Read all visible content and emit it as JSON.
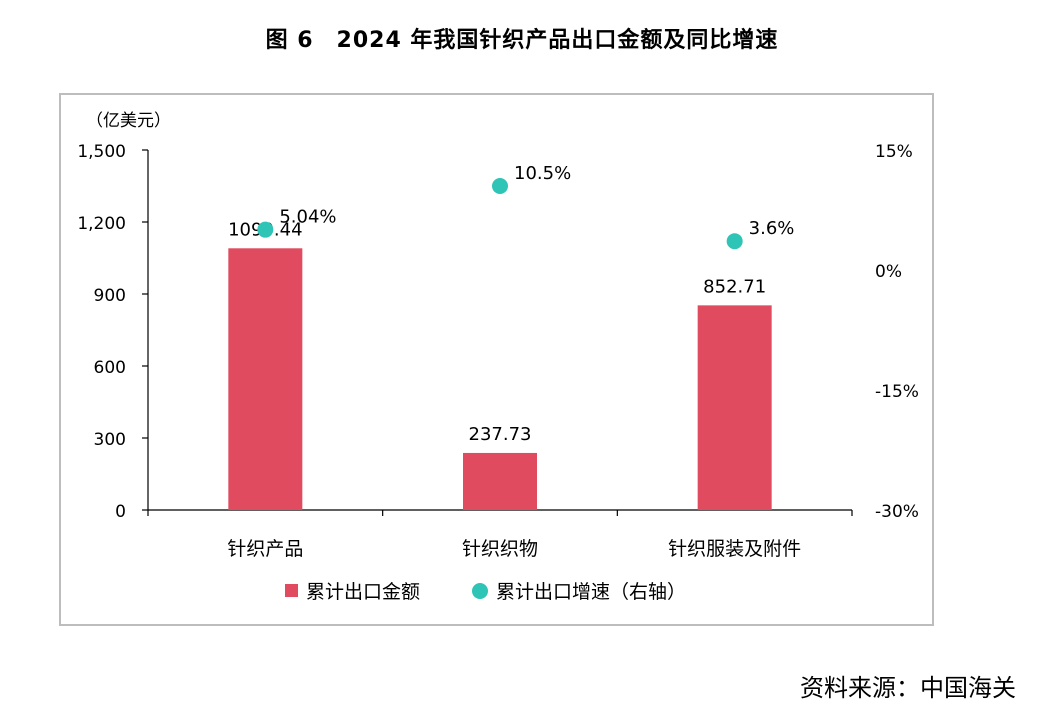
{
  "title": "图 6　2024 年我国针织产品出口金额及同比增速",
  "source": "资料来源：中国海关",
  "colors": {
    "bar": "#e04b5f",
    "dot": "#2ec4b6",
    "axis": "#000000",
    "frame": "#bdbdbd"
  },
  "chart_data": {
    "type": "bar",
    "categories": [
      "针织产品",
      "针织织物",
      "针织服装及附件"
    ],
    "series": [
      {
        "name": "累计出口金额",
        "kind": "bar",
        "axis": "left",
        "values": [
          1090.44,
          237.73,
          852.71
        ],
        "labels": [
          "1090.44",
          "237.73",
          "852.71"
        ]
      },
      {
        "name": "累计出口增速（右轴）",
        "kind": "scatter",
        "axis": "right",
        "values": [
          5.04,
          10.5,
          3.6
        ],
        "labels": [
          "5.04%",
          "10.5%",
          "3.6%"
        ]
      }
    ],
    "y_left": {
      "unit_label": "（亿美元）",
      "ylim": [
        0,
        1500
      ],
      "ticks": [
        0,
        300,
        600,
        900,
        1200,
        1500
      ],
      "tick_labels": [
        "0",
        "300",
        "600",
        "900",
        "1,200",
        "1,500"
      ]
    },
    "y_right": {
      "ylim": [
        -30,
        15
      ],
      "ticks": [
        -30,
        -15,
        0,
        15
      ],
      "tick_labels": [
        "-30%",
        "-15%",
        "0%",
        "15%"
      ]
    },
    "legend": {
      "position": "bottom",
      "items": [
        "累计出口金额",
        "累计出口增速（右轴）"
      ]
    },
    "grid": false
  }
}
